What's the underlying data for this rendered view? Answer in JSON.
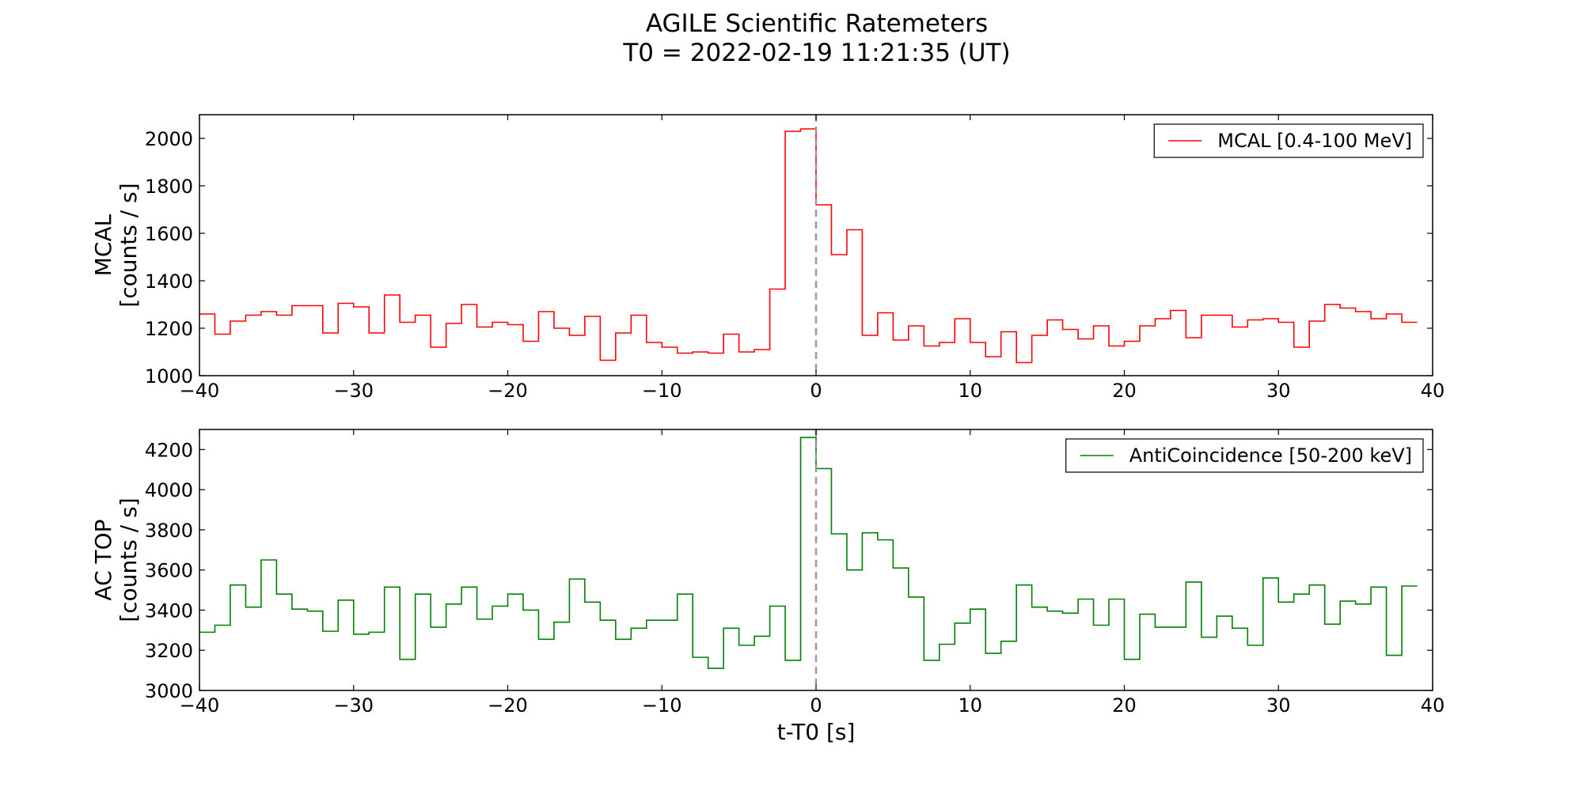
{
  "figure": {
    "title_line1": "AGILE Scientific Ratemeters",
    "title_line2": "T0 = 2022-02-19 11:21:35 (UT)"
  },
  "chart_data": [
    {
      "type": "line",
      "drawstyle": "steps",
      "ylabel_line1": "MCAL",
      "ylabel_line2": "[counts / s]",
      "xlabel": "",
      "xlim": [
        -40,
        40
      ],
      "ylim": [
        1000,
        2100
      ],
      "xticks": [
        -40,
        -30,
        -20,
        -10,
        0,
        10,
        20,
        30,
        40
      ],
      "xtick_labels": [
        "−40",
        "−30",
        "−20",
        "−10",
        "0",
        "10",
        "20",
        "30",
        "40"
      ],
      "yticks": [
        1000,
        1200,
        1400,
        1600,
        1800,
        2000
      ],
      "ytick_labels": [
        "1000",
        "1200",
        "1400",
        "1600",
        "1800",
        "2000"
      ],
      "t0_marker": 0,
      "legend_position": "top-right",
      "series": [
        {
          "name": "MCAL [0.4-100 MeV]",
          "color": "#ff0000",
          "bin_start": -40,
          "bin_width": 1,
          "values": [
            1260,
            1175,
            1230,
            1255,
            1270,
            1255,
            1295,
            1295,
            1180,
            1305,
            1290,
            1180,
            1340,
            1225,
            1255,
            1120,
            1220,
            1300,
            1205,
            1225,
            1215,
            1145,
            1270,
            1200,
            1170,
            1250,
            1065,
            1180,
            1255,
            1140,
            1120,
            1095,
            1100,
            1095,
            1175,
            1100,
            1110,
            1365,
            2030,
            2040,
            1720,
            1510,
            1615,
            1170,
            1265,
            1150,
            1210,
            1125,
            1140,
            1240,
            1140,
            1080,
            1185,
            1055,
            1170,
            1235,
            1195,
            1155,
            1210,
            1125,
            1145,
            1210,
            1240,
            1275,
            1160,
            1255,
            1255,
            1205,
            1235,
            1240,
            1225,
            1120,
            1230,
            1300,
            1285,
            1270,
            1240,
            1260,
            1225
          ]
        }
      ]
    },
    {
      "type": "line",
      "drawstyle": "steps",
      "ylabel_line1": "AC TOP",
      "ylabel_line2": "[counts / s]",
      "xlabel": "t-T0 [s]",
      "xlim": [
        -40,
        40
      ],
      "ylim": [
        3000,
        4300
      ],
      "xticks": [
        -40,
        -30,
        -20,
        -10,
        0,
        10,
        20,
        30,
        40
      ],
      "xtick_labels": [
        "−40",
        "−30",
        "−20",
        "−10",
        "0",
        "10",
        "20",
        "30",
        "40"
      ],
      "yticks": [
        3000,
        3200,
        3400,
        3600,
        3800,
        4000,
        4200
      ],
      "ytick_labels": [
        "3000",
        "3200",
        "3400",
        "3600",
        "3800",
        "4000",
        "4200"
      ],
      "t0_marker": 0,
      "legend_position": "top-right",
      "series": [
        {
          "name": "AntiCoincidence [50-200 keV]",
          "color": "#008000",
          "bin_start": -40,
          "bin_width": 1,
          "values": [
            3290,
            3325,
            3525,
            3415,
            3650,
            3480,
            3405,
            3395,
            3295,
            3450,
            3280,
            3290,
            3515,
            3155,
            3480,
            3315,
            3430,
            3515,
            3355,
            3420,
            3480,
            3400,
            3255,
            3340,
            3555,
            3440,
            3350,
            3255,
            3310,
            3350,
            3350,
            3480,
            3165,
            3110,
            3310,
            3225,
            3270,
            3420,
            3150,
            4260,
            4105,
            3780,
            3600,
            3785,
            3750,
            3610,
            3465,
            3150,
            3230,
            3335,
            3405,
            3185,
            3245,
            3525,
            3415,
            3395,
            3385,
            3455,
            3325,
            3455,
            3155,
            3380,
            3315,
            3315,
            3540,
            3265,
            3370,
            3310,
            3225,
            3560,
            3440,
            3480,
            3525,
            3330,
            3445,
            3430,
            3515,
            3175,
            3520
          ]
        }
      ]
    }
  ]
}
